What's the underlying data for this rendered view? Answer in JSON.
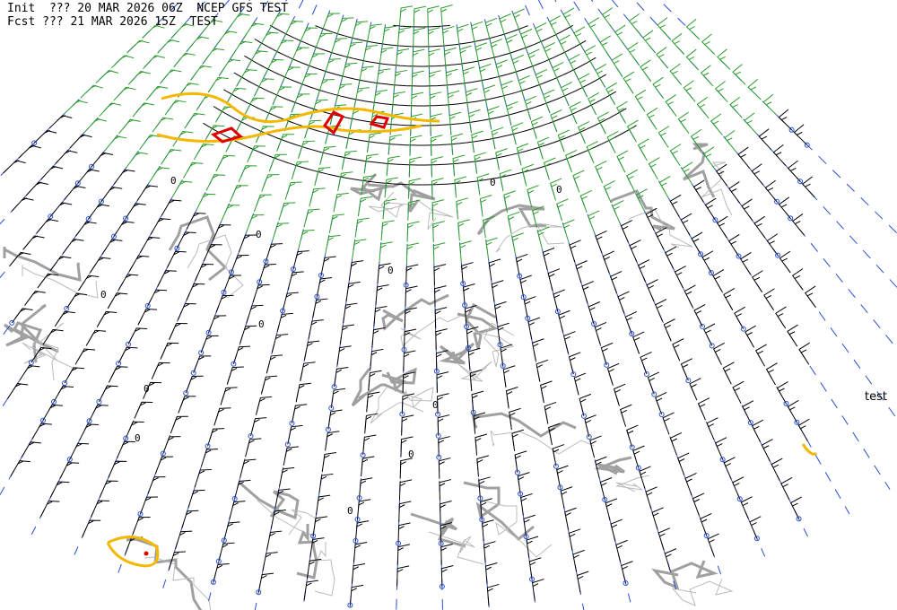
{
  "header": {
    "line1": "Init  ??? 20 MAR 2026 06Z  NCEP GFS TEST",
    "line2": "Fcst ??? 21 MAR 2026 15Z  TEST"
  },
  "side_label": "test",
  "contour_labels": [
    "0",
    "0",
    "0",
    "0",
    "0",
    "0",
    "0",
    "0",
    "0",
    "0",
    "0",
    "0"
  ]
}
